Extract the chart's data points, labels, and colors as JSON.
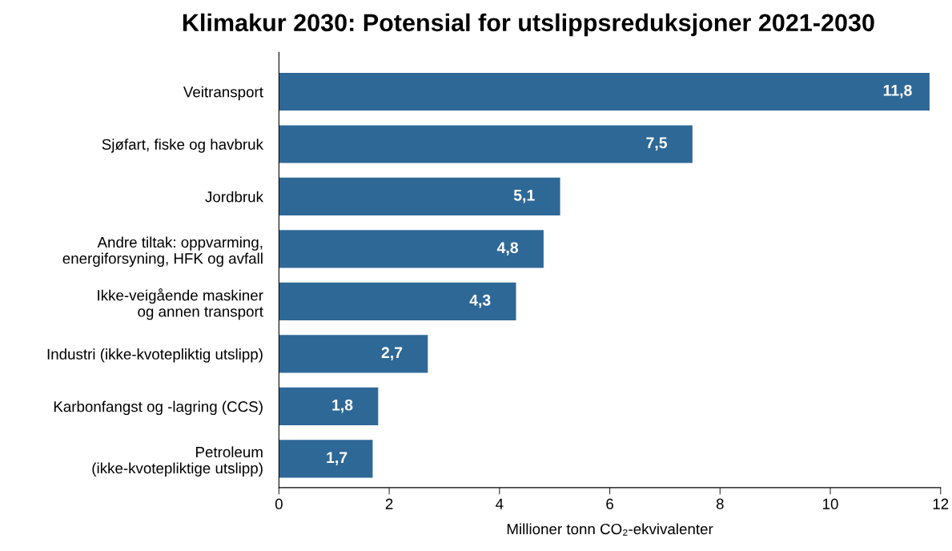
{
  "chart_data": {
    "type": "bar",
    "orientation": "horizontal",
    "title": "Klimakur 2030: Potensial for utslippsreduksjoner 2021-2030",
    "xlabel": "Millioner tonn CO₂-ekvivalenter",
    "categories": [
      "Veitransport",
      "Sjøfart, fiske og havbruk",
      "Jordbruk",
      "Andre tiltak: oppvarming,\nenergiforsyning, HFK og avfall",
      "Ikke-veigående maskiner\nog annen transport",
      "Industri (ikke-kvotepliktig utslipp)",
      "Karbonfangst og -lagring (CCS)",
      "Petroleum\n(ikke-kvotepliktige utslipp)"
    ],
    "values": [
      11.8,
      7.5,
      5.1,
      4.8,
      4.3,
      2.7,
      1.8,
      1.7
    ],
    "value_labels": [
      "11,8",
      "7,5",
      "5,1",
      "4,8",
      "4,3",
      "2,7",
      "1,8",
      "1,7"
    ],
    "color": "#2e6897",
    "xlim": [
      0,
      12
    ],
    "xticks": [
      0,
      2,
      4,
      6,
      8,
      10,
      12
    ],
    "grid": false
  }
}
